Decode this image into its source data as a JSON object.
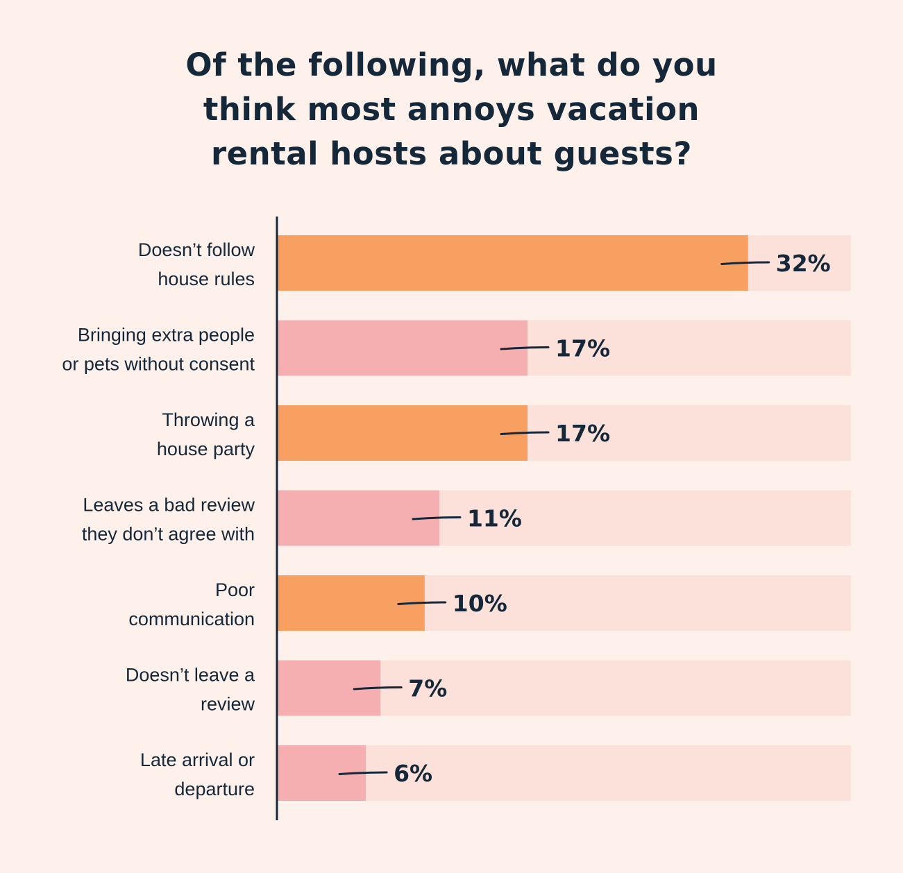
{
  "title_lines": [
    "Of the following, what do you",
    "think most annoys vacation",
    "rental hosts about guests?"
  ],
  "colors": {
    "background": "#FEF0EA",
    "track": "#FCE1DB",
    "orange": "#F7A062",
    "pink": "#F6AFB1",
    "text": "#14283A"
  },
  "chart_data": {
    "type": "bar",
    "orientation": "horizontal",
    "title": "Of the following, what do you think most annoys vacation rental hosts about guests?",
    "categories": [
      [
        "Doesn’t follow",
        "house rules"
      ],
      [
        "Bringing extra people",
        "or pets without consent"
      ],
      [
        "Throwing a",
        "house party"
      ],
      [
        "Leaves a bad review",
        "they don’t agree with"
      ],
      [
        "Poor",
        "communication"
      ],
      [
        "Doesn’t leave a",
        "review"
      ],
      [
        "Late arrival or",
        "departure"
      ]
    ],
    "values": [
      32,
      17,
      17,
      11,
      10,
      7,
      6
    ],
    "value_labels": [
      "32%",
      "17%",
      "17%",
      "11%",
      "10%",
      "7%",
      "6%"
    ],
    "bar_colors": [
      "orange",
      "pink",
      "orange",
      "pink",
      "orange",
      "pink",
      "pink"
    ],
    "xlim": [
      0,
      39
    ],
    "grid": false,
    "legend": "none"
  }
}
